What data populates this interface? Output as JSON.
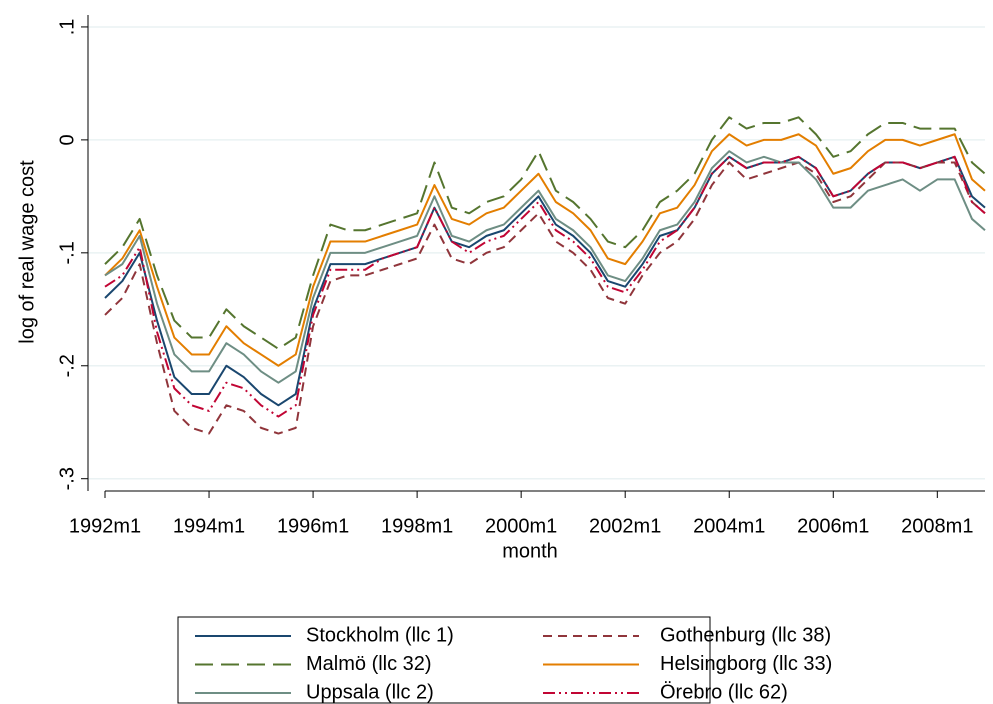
{
  "chart_data": {
    "type": "line",
    "x_label": "month",
    "y_label": "log of real wage cost",
    "x": [
      384,
      388,
      392,
      396,
      400,
      404,
      408,
      412,
      416,
      420,
      424,
      428,
      432,
      436,
      440,
      444,
      448,
      452,
      456,
      460,
      464,
      468,
      472,
      476,
      480,
      484,
      488,
      492,
      496,
      500,
      504,
      508,
      512,
      516,
      520,
      524,
      528,
      532,
      536,
      540,
      544,
      548,
      552,
      556,
      560,
      564,
      568,
      572,
      576,
      580,
      584,
      587
    ],
    "xlim": [
      384,
      587
    ],
    "xticks": [
      {
        "value": 384,
        "label": "1992m1"
      },
      {
        "value": 408,
        "label": "1994m1"
      },
      {
        "value": 432,
        "label": "1996m1"
      },
      {
        "value": 456,
        "label": "1998m1"
      },
      {
        "value": 480,
        "label": "2000m1"
      },
      {
        "value": 504,
        "label": "2002m1"
      },
      {
        "value": 528,
        "label": "2004m1"
      },
      {
        "value": 552,
        "label": "2006m1"
      },
      {
        "value": 576,
        "label": "2008m1"
      }
    ],
    "ylim": [
      -0.31,
      0.115
    ],
    "yticks": [
      {
        "value": 0.1,
        "label": ".1"
      },
      0,
      {
        "value": -0.1,
        "label": "-.1"
      },
      {
        "value": -0.2,
        "label": "-.2"
      },
      {
        "value": -0.3,
        "label": "-.3"
      }
    ],
    "grid": true,
    "legend": "bottom",
    "series": [
      {
        "name": "Stockholm (llc 1)",
        "color": "#1a476f",
        "dash": "none",
        "values": [
          -0.14,
          -0.125,
          -0.1,
          -0.16,
          -0.21,
          -0.225,
          -0.225,
          -0.2,
          -0.21,
          -0.225,
          -0.235,
          -0.225,
          -0.15,
          -0.11,
          -0.11,
          -0.11,
          -0.105,
          -0.1,
          -0.095,
          -0.06,
          -0.09,
          -0.095,
          -0.085,
          -0.08,
          -0.065,
          -0.05,
          -0.075,
          -0.085,
          -0.1,
          -0.125,
          -0.13,
          -0.11,
          -0.085,
          -0.08,
          -0.06,
          -0.03,
          -0.015,
          -0.025,
          -0.02,
          -0.02,
          -0.015,
          -0.025,
          -0.05,
          -0.045,
          -0.03,
          -0.02,
          -0.02,
          -0.025,
          -0.02,
          -0.015,
          -0.05,
          -0.06
        ]
      },
      {
        "name": "Gothenburg (llc 38)",
        "color": "#90353b",
        "dash": "9 6",
        "values": [
          -0.155,
          -0.14,
          -0.11,
          -0.18,
          -0.24,
          -0.255,
          -0.26,
          -0.235,
          -0.24,
          -0.255,
          -0.26,
          -0.255,
          -0.165,
          -0.125,
          -0.12,
          -0.12,
          -0.115,
          -0.11,
          -0.105,
          -0.075,
          -0.105,
          -0.11,
          -0.1,
          -0.095,
          -0.08,
          -0.065,
          -0.09,
          -0.1,
          -0.115,
          -0.14,
          -0.145,
          -0.12,
          -0.1,
          -0.09,
          -0.07,
          -0.04,
          -0.02,
          -0.035,
          -0.03,
          -0.025,
          -0.02,
          -0.03,
          -0.055,
          -0.05,
          -0.035,
          -0.02,
          -0.02,
          -0.025,
          -0.02,
          -0.02,
          -0.055,
          -0.065
        ]
      },
      {
        "name": "Malmö (llc 32)",
        "color": "#55752f",
        "dash": "18 8",
        "values": [
          -0.11,
          -0.095,
          -0.07,
          -0.12,
          -0.16,
          -0.175,
          -0.175,
          -0.15,
          -0.165,
          -0.175,
          -0.185,
          -0.175,
          -0.12,
          -0.075,
          -0.08,
          -0.08,
          -0.075,
          -0.07,
          -0.065,
          -0.02,
          -0.06,
          -0.065,
          -0.055,
          -0.05,
          -0.035,
          -0.01,
          -0.045,
          -0.055,
          -0.07,
          -0.09,
          -0.095,
          -0.08,
          -0.055,
          -0.045,
          -0.03,
          0,
          0.02,
          0.01,
          0.015,
          0.015,
          0.02,
          0.005,
          -0.015,
          -0.01,
          0.005,
          0.015,
          0.015,
          0.01,
          0.01,
          0.01,
          -0.02,
          -0.03
        ]
      },
      {
        "name": "Helsingborg (llc 33)",
        "color": "#e37e00",
        "dash": "none",
        "values": [
          -0.12,
          -0.105,
          -0.08,
          -0.13,
          -0.175,
          -0.19,
          -0.19,
          -0.165,
          -0.18,
          -0.19,
          -0.2,
          -0.19,
          -0.13,
          -0.09,
          -0.09,
          -0.09,
          -0.085,
          -0.08,
          -0.075,
          -0.04,
          -0.07,
          -0.075,
          -0.065,
          -0.06,
          -0.045,
          -0.03,
          -0.055,
          -0.065,
          -0.08,
          -0.105,
          -0.11,
          -0.09,
          -0.065,
          -0.06,
          -0.04,
          -0.01,
          0.005,
          -0.005,
          0,
          0,
          0.005,
          -0.005,
          -0.03,
          -0.025,
          -0.01,
          0,
          0,
          -0.005,
          0,
          0.005,
          -0.035,
          -0.045
        ]
      },
      {
        "name": "Uppsala (llc 2)",
        "color": "#6e8e84",
        "dash": "none",
        "values": [
          -0.12,
          -0.11,
          -0.085,
          -0.145,
          -0.19,
          -0.205,
          -0.205,
          -0.18,
          -0.19,
          -0.205,
          -0.215,
          -0.205,
          -0.14,
          -0.1,
          -0.1,
          -0.1,
          -0.095,
          -0.09,
          -0.085,
          -0.05,
          -0.085,
          -0.09,
          -0.08,
          -0.075,
          -0.06,
          -0.045,
          -0.07,
          -0.08,
          -0.095,
          -0.12,
          -0.125,
          -0.105,
          -0.08,
          -0.075,
          -0.055,
          -0.025,
          -0.01,
          -0.02,
          -0.015,
          -0.02,
          -0.02,
          -0.035,
          -0.06,
          -0.06,
          -0.045,
          -0.04,
          -0.035,
          -0.045,
          -0.035,
          -0.035,
          -0.07,
          -0.08
        ]
      },
      {
        "name": "Örebro (llc 62)",
        "color": "#c10534",
        "dash": "12 4 2 4 2 4",
        "values": [
          -0.13,
          -0.12,
          -0.095,
          -0.17,
          -0.22,
          -0.235,
          -0.24,
          -0.215,
          -0.22,
          -0.235,
          -0.245,
          -0.235,
          -0.155,
          -0.115,
          -0.115,
          -0.115,
          -0.105,
          -0.1,
          -0.095,
          -0.06,
          -0.09,
          -0.1,
          -0.09,
          -0.085,
          -0.07,
          -0.055,
          -0.08,
          -0.09,
          -0.105,
          -0.13,
          -0.135,
          -0.115,
          -0.09,
          -0.08,
          -0.06,
          -0.03,
          -0.015,
          -0.025,
          -0.02,
          -0.02,
          -0.015,
          -0.025,
          -0.05,
          -0.045,
          -0.03,
          -0.02,
          -0.02,
          -0.025,
          -0.02,
          -0.015,
          -0.055,
          -0.065
        ]
      }
    ]
  }
}
